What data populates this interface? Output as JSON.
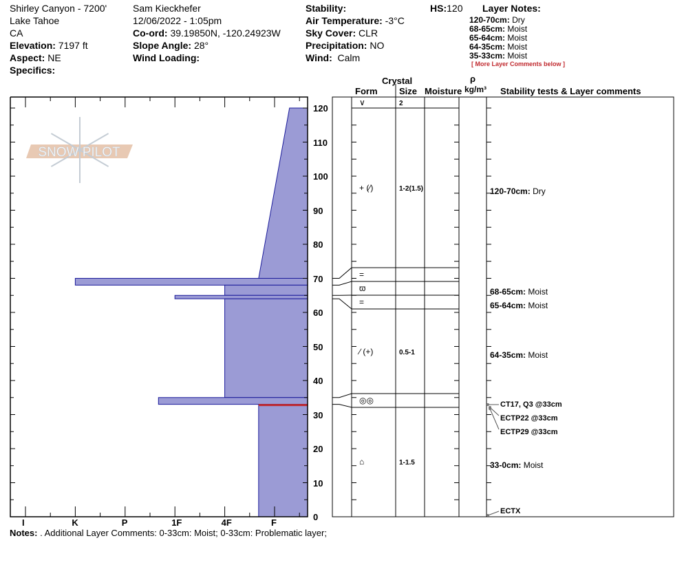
{
  "site": {
    "name": "Shirley Canyon - 7200'",
    "area": "Lake Tahoe",
    "state": "CA",
    "elevation_label": "Elevation:",
    "elevation": "7197 ft",
    "aspect_label": "Aspect:",
    "aspect": "NE",
    "specifics_label": "Specifics:"
  },
  "observer": {
    "name": "Sam Kieckhefer",
    "datetime": "12/06/2022 - 1:05pm",
    "coord_label": "Co-ord:",
    "coord": "39.19850N, -120.24923W",
    "slope_label": "Slope Angle:",
    "slope": "28°",
    "wind_loading_label": "Wind Loading:"
  },
  "conditions": {
    "stability_label": "Stability:",
    "air_temp_label": "Air Temperature:",
    "air_temp": "-3°C",
    "sky_label": "Sky Cover:",
    "sky": "CLR",
    "precip_label": "Precipitation:",
    "precip": "NO",
    "wind_label": "Wind:",
    "wind": "Calm"
  },
  "hs": {
    "label": "HS:",
    "value": "120"
  },
  "layer_notes": {
    "title": "Layer Notes:",
    "items": [
      {
        "range": "120-70cm:",
        "note": "Dry"
      },
      {
        "range": "68-65cm:",
        "note": "Moist"
      },
      {
        "range": "65-64cm:",
        "note": "Moist"
      },
      {
        "range": "64-35cm:",
        "note": "Moist"
      },
      {
        "range": "35-33cm:",
        "note": "Moist"
      }
    ],
    "more": "[ More Layer Comments below ]"
  },
  "table_headers": {
    "crystal": "Crystal",
    "form": "Form",
    "size": "Size",
    "moisture": "Moisture",
    "rho": "ρ",
    "density": "kg/m³",
    "comments": "Stability tests & Layer comments"
  },
  "colors": {
    "layer_fill": "#9b9bd5",
    "layer_stroke": "#1a1a9a",
    "problem_line": "#c0282d",
    "logo_band": "#e8c9b3"
  },
  "logo_text": "SNOW PILOT",
  "chart_data": {
    "type": "snow-profile",
    "ylim": [
      0,
      120
    ],
    "yticks": [
      0,
      10,
      20,
      30,
      40,
      50,
      60,
      70,
      80,
      90,
      100,
      110,
      120
    ],
    "hardness_labels": [
      "I",
      "K",
      "P",
      "1F",
      "4F",
      "F"
    ],
    "layers": [
      {
        "top": 120,
        "bottom": 70,
        "hardness_top": 5.3,
        "hardness_bottom": 4.68
      },
      {
        "top": 70,
        "bottom": 68,
        "hardness_top": 1,
        "hardness_bottom": 1
      },
      {
        "top": 68,
        "bottom": 65,
        "hardness_top": 4,
        "hardness_bottom": 4
      },
      {
        "top": 65,
        "bottom": 64,
        "hardness_top": 3,
        "hardness_bottom": 3
      },
      {
        "top": 64,
        "bottom": 35,
        "hardness_top": 4,
        "hardness_bottom": 4
      },
      {
        "top": 35,
        "bottom": 33,
        "hardness_top": 2.67,
        "hardness_bottom": 2.67
      },
      {
        "top": 33,
        "bottom": 0,
        "hardness_top": 4.68,
        "hardness_bottom": 4.68
      }
    ],
    "problem_layer_depth": 33
  },
  "grain_rows": [
    {
      "form": "∨",
      "size": "2"
    },
    {
      "form": "+ (∕)",
      "size": "1-2(1.5)"
    },
    {
      "form": "=",
      "size": ""
    },
    {
      "form": "ϖ",
      "size": ""
    },
    {
      "form": "=",
      "size": ""
    },
    {
      "form": "∕ (+)",
      "size": "0.5-1"
    },
    {
      "form": "◎◎",
      "size": ""
    },
    {
      "form": "⌂",
      "size": "1-1.5"
    }
  ],
  "comments": [
    {
      "range": "120-70cm:",
      "note": "Dry"
    },
    {
      "range": "68-65cm:",
      "note": "Moist"
    },
    {
      "range": "65-64cm:",
      "note": "Moist"
    },
    {
      "range": "64-35cm:",
      "note": "Moist"
    },
    {
      "range": "33-0cm:",
      "note": "Moist"
    }
  ],
  "tests": [
    "CT17, Q3 @33cm",
    "ECTP22 @33cm",
    "ECTP29 @33cm",
    "ECTX"
  ],
  "notes": {
    "label": "Notes:",
    "text": ". Additional Layer Comments: 0-33cm: Moist; 0-33cm: Problematic layer;"
  }
}
